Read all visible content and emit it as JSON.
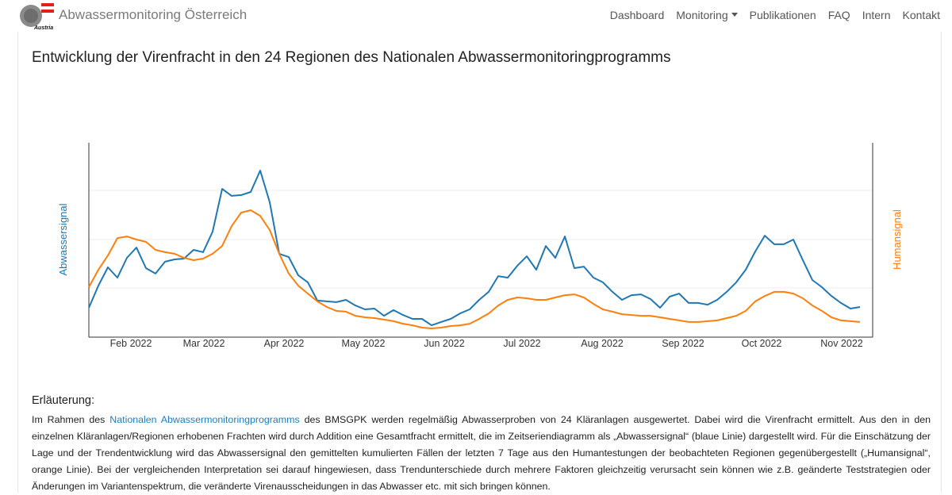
{
  "nav": {
    "badge": "Austria",
    "brand": "Abwassermonitoring Österreich",
    "links": [
      "Dashboard",
      "Monitoring",
      "Publikationen",
      "FAQ",
      "Intern",
      "Kontakt"
    ]
  },
  "chart_data": {
    "type": "line",
    "title": "Entwicklung der Virenfracht in den 24 Regionen des Nationalen Abwassermonitoringprogramms",
    "y_label": "Abwassersignal",
    "y2_label": "Humansignal",
    "xticks": [
      "Feb 2022",
      "Mar 2022",
      "Apr 2022",
      "May 2022",
      "Jun 2022",
      "Jul 2022",
      "Aug 2022",
      "Sep 2022",
      "Oct 2022",
      "Nov 2022"
    ],
    "ylim": [
      0,
      100
    ],
    "y2lim": [
      0,
      100
    ],
    "series": [
      {
        "name": "Abwassersignal",
        "color": "#1f77b4",
        "values": [
          15.1,
          26.5,
          35.9,
          30.6,
          40.8,
          46.1,
          35.5,
          32.7,
          38.8,
          40.0,
          40.4,
          44.9,
          43.7,
          54.3,
          76.3,
          72.7,
          73.1,
          74.7,
          85.7,
          69.4,
          42.9,
          41.2,
          31.8,
          28.2,
          18.8,
          18.4,
          18.0,
          19.2,
          16.3,
          14.3,
          14.7,
          11.0,
          13.9,
          11.4,
          9.4,
          9.4,
          6.1,
          7.8,
          9.4,
          12.2,
          14.3,
          19.2,
          23.3,
          31.4,
          30.6,
          36.7,
          41.6,
          34.7,
          46.9,
          40.8,
          51.8,
          35.5,
          36.3,
          30.6,
          28.2,
          23.3,
          19.2,
          21.6,
          22.0,
          19.6,
          15.1,
          20.8,
          22.4,
          17.6,
          17.6,
          16.7,
          19.2,
          23.3,
          28.2,
          34.7,
          44.1,
          52.2,
          47.8,
          47.8,
          50.2,
          39.6,
          29.4,
          25.7,
          21.2,
          17.6,
          14.7,
          15.5
        ]
      },
      {
        "name": "Humansignal",
        "color": "#ff7f0e",
        "axis": "y2",
        "values": [
          25.7,
          34.7,
          42.0,
          51.0,
          51.8,
          50.2,
          49.0,
          44.9,
          43.7,
          42.9,
          40.8,
          39.6,
          40.4,
          42.9,
          46.9,
          57.1,
          64.1,
          65.3,
          62.4,
          55.1,
          42.9,
          32.7,
          26.5,
          22.4,
          18.4,
          15.5,
          13.5,
          13.1,
          11.0,
          10.2,
          9.8,
          9.0,
          8.2,
          6.9,
          6.1,
          4.9,
          4.5,
          4.9,
          5.7,
          6.1,
          6.9,
          9.4,
          12.2,
          16.3,
          19.2,
          20.4,
          20.0,
          19.2,
          19.2,
          20.4,
          21.6,
          22.0,
          20.4,
          17.1,
          14.3,
          13.1,
          11.8,
          11.4,
          11.0,
          11.0,
          10.2,
          9.4,
          8.6,
          7.8,
          7.8,
          8.2,
          8.6,
          9.8,
          11.0,
          13.5,
          18.4,
          21.2,
          23.3,
          23.3,
          22.4,
          20.0,
          16.3,
          13.5,
          10.2,
          8.6,
          8.2,
          7.8
        ]
      }
    ]
  },
  "explanation": {
    "heading": "Erläuterung:",
    "text_before": "Im Rahmen des",
    "link": "Nationalen Abwassermonitoringprogramms",
    "text_after": "des BMSGPK werden regelmäßig Abwasserproben von 24 Kläranlagen ausgewertet. Dabei wird die Virenfracht ermittelt. Aus den in den einzelnen Kläranlagen/Regionen erhobenen Frachten wird durch Addition eine Gesamtfracht ermittelt, die im Zeitseriendiagramm als „Abwassersignal“ (blaue Linie) dargestellt wird. Für die Einschätzung der Lage und der Trendentwicklung wird das Abwassersignal den gemittelten kumulierten Fällen der letzten 7 Tage aus den Humantestungen der beobachteten Regionen gegenübergestellt („Humansignal“, orange Linie). Bei der vergleichenden Interpretation sei darauf hingewiesen, dass Trendunterschiede durch mehrere Faktoren gleichzeitig verursacht sein können wie z.B. geänderte Teststrategien oder Änderungen im Variantenspektrum, die veränderte Virenausscheidungen in das Abwasser etc. mit sich bringen können."
  }
}
